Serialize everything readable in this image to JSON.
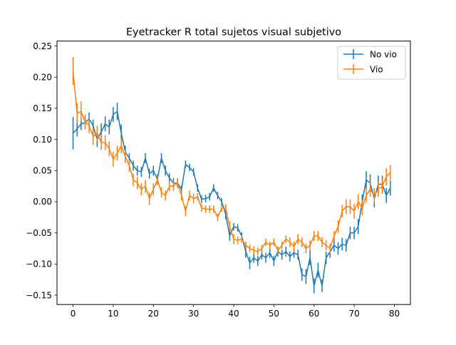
{
  "chart_data": {
    "type": "line",
    "title": "Eyetracker R total sujetos visual subjetivo",
    "xlabel": "",
    "ylabel": "",
    "xlim": [
      -4,
      84
    ],
    "ylim": [
      -0.165,
      0.258
    ],
    "x_ticks": [
      0,
      10,
      20,
      30,
      40,
      50,
      60,
      70,
      80
    ],
    "y_ticks": [
      -0.15,
      -0.1,
      -0.05,
      0.0,
      0.05,
      0.1,
      0.15,
      0.2,
      0.25
    ],
    "x_tick_labels": [
      "0",
      "10",
      "20",
      "30",
      "40",
      "50",
      "60",
      "70",
      "80"
    ],
    "y_tick_labels": [
      "−0.15",
      "−0.10",
      "−0.05",
      "0.00",
      "0.05",
      "0.10",
      "0.15",
      "0.20",
      "0.25"
    ],
    "grid": false,
    "legend_position": "top-right",
    "error_bars": true,
    "series": [
      {
        "name": "No vio",
        "color": "#1f77b4",
        "x": [
          0,
          1,
          2,
          3,
          4,
          5,
          6,
          7,
          8,
          9,
          10,
          11,
          12,
          13,
          14,
          15,
          16,
          17,
          18,
          19,
          20,
          21,
          22,
          23,
          24,
          25,
          26,
          27,
          28,
          29,
          30,
          31,
          32,
          33,
          34,
          35,
          36,
          37,
          38,
          39,
          40,
          41,
          42,
          43,
          44,
          45,
          46,
          47,
          48,
          49,
          50,
          51,
          52,
          53,
          54,
          55,
          56,
          57,
          58,
          59,
          60,
          61,
          62,
          63,
          64,
          65,
          66,
          67,
          68,
          69,
          70,
          71,
          72,
          73,
          74,
          75,
          76,
          77,
          78,
          79
        ],
        "values": [
          0.11,
          0.117,
          0.125,
          0.127,
          0.133,
          0.122,
          0.1,
          0.112,
          0.125,
          0.12,
          0.14,
          0.145,
          0.11,
          0.08,
          0.07,
          0.058,
          0.05,
          0.048,
          0.07,
          0.045,
          0.05,
          0.036,
          0.07,
          0.05,
          0.038,
          0.03,
          0.03,
          0.02,
          0.06,
          0.055,
          0.048,
          0.022,
          0.004,
          0.005,
          0.008,
          0.022,
          0.01,
          0.0,
          -0.02,
          -0.055,
          -0.04,
          -0.042,
          -0.055,
          -0.08,
          -0.098,
          -0.09,
          -0.095,
          -0.085,
          -0.09,
          -0.082,
          -0.095,
          -0.08,
          -0.085,
          -0.08,
          -0.088,
          -0.082,
          -0.085,
          -0.117,
          -0.12,
          -0.09,
          -0.135,
          -0.11,
          -0.135,
          -0.09,
          -0.08,
          -0.07,
          -0.075,
          -0.068,
          -0.07,
          -0.05,
          -0.05,
          -0.04,
          0.0,
          0.035,
          0.03,
          0.005,
          0.028,
          0.028,
          0.01,
          0.022
        ],
        "errors": [
          0.026,
          0.012,
          0.01,
          0.01,
          0.01,
          0.01,
          0.012,
          0.014,
          0.012,
          0.012,
          0.012,
          0.014,
          0.014,
          0.01,
          0.008,
          0.008,
          0.008,
          0.008,
          0.008,
          0.008,
          0.008,
          0.008,
          0.008,
          0.008,
          0.008,
          0.008,
          0.006,
          0.006,
          0.006,
          0.006,
          0.006,
          0.006,
          0.006,
          0.006,
          0.006,
          0.006,
          0.006,
          0.006,
          0.008,
          0.008,
          0.006,
          0.006,
          0.006,
          0.01,
          0.01,
          0.008,
          0.008,
          0.008,
          0.008,
          0.008,
          0.008,
          0.008,
          0.008,
          0.008,
          0.008,
          0.008,
          0.008,
          0.01,
          0.012,
          0.012,
          0.012,
          0.012,
          0.01,
          0.01,
          0.01,
          0.01,
          0.01,
          0.01,
          0.01,
          0.01,
          0.01,
          0.012,
          0.012,
          0.014,
          0.014,
          0.014,
          0.014,
          0.014,
          0.012,
          0.012
        ]
      },
      {
        "name": "Vio",
        "color": "#ff7f0e",
        "x": [
          0,
          1,
          2,
          3,
          4,
          5,
          6,
          7,
          8,
          9,
          10,
          11,
          12,
          13,
          14,
          15,
          16,
          17,
          18,
          19,
          20,
          21,
          22,
          23,
          24,
          25,
          26,
          27,
          28,
          29,
          30,
          31,
          32,
          33,
          34,
          35,
          36,
          37,
          38,
          39,
          40,
          41,
          42,
          43,
          44,
          45,
          46,
          47,
          48,
          49,
          50,
          51,
          52,
          53,
          54,
          55,
          56,
          57,
          58,
          59,
          60,
          61,
          62,
          63,
          64,
          65,
          66,
          67,
          68,
          69,
          70,
          71,
          72,
          73,
          74,
          75,
          76,
          77,
          78,
          79
        ],
        "values": [
          0.21,
          0.142,
          0.145,
          0.128,
          0.122,
          0.105,
          0.11,
          0.095,
          0.095,
          0.085,
          0.068,
          0.078,
          0.09,
          0.072,
          0.058,
          0.035,
          0.03,
          0.02,
          0.025,
          0.005,
          0.02,
          0.035,
          0.015,
          0.01,
          0.025,
          0.025,
          0.03,
          0.01,
          -0.015,
          0.01,
          0.005,
          0.008,
          -0.01,
          -0.012,
          -0.012,
          -0.012,
          -0.025,
          -0.01,
          -0.01,
          -0.04,
          -0.06,
          -0.062,
          -0.06,
          -0.07,
          -0.075,
          -0.078,
          -0.08,
          -0.075,
          -0.065,
          -0.07,
          -0.065,
          -0.078,
          -0.07,
          -0.06,
          -0.065,
          -0.072,
          -0.06,
          -0.065,
          -0.075,
          -0.07,
          -0.055,
          -0.055,
          -0.065,
          -0.07,
          -0.075,
          -0.055,
          -0.04,
          -0.015,
          -0.008,
          -0.008,
          -0.015,
          0.0,
          -0.01,
          0.01,
          0.02,
          0.01,
          0.02,
          0.025,
          0.04,
          0.047
        ],
        "errors": [
          0.022,
          0.016,
          0.016,
          0.012,
          0.012,
          0.014,
          0.012,
          0.012,
          0.012,
          0.012,
          0.012,
          0.012,
          0.012,
          0.01,
          0.01,
          0.01,
          0.01,
          0.01,
          0.01,
          0.01,
          0.01,
          0.008,
          0.008,
          0.008,
          0.008,
          0.008,
          0.008,
          0.008,
          0.008,
          0.008,
          0.008,
          0.006,
          0.006,
          0.006,
          0.006,
          0.006,
          0.006,
          0.006,
          0.006,
          0.008,
          0.008,
          0.006,
          0.006,
          0.006,
          0.006,
          0.006,
          0.006,
          0.006,
          0.006,
          0.006,
          0.006,
          0.006,
          0.006,
          0.006,
          0.008,
          0.008,
          0.008,
          0.008,
          0.008,
          0.008,
          0.008,
          0.008,
          0.008,
          0.008,
          0.008,
          0.008,
          0.01,
          0.01,
          0.012,
          0.012,
          0.012,
          0.012,
          0.012,
          0.012,
          0.012,
          0.012,
          0.012,
          0.012,
          0.014,
          0.012
        ]
      }
    ]
  }
}
